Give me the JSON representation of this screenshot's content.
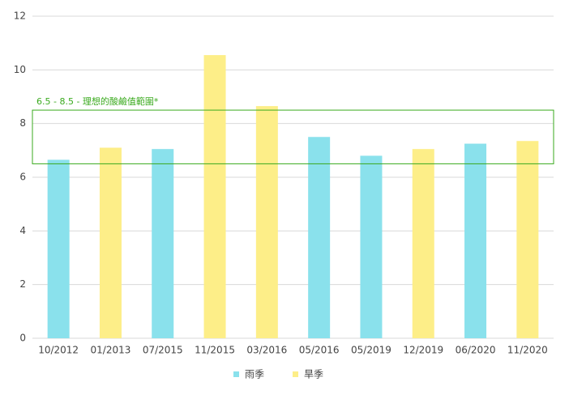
{
  "chart_data": {
    "type": "bar",
    "categories": [
      "10/2012",
      "01/2013",
      "07/2015",
      "11/2015",
      "03/2016",
      "05/2016",
      "05/2019",
      "12/2019",
      "06/2020",
      "11/2020"
    ],
    "series": [
      {
        "name": "雨季",
        "color": "#8ae1ec",
        "values": [
          6.65,
          null,
          7.05,
          null,
          null,
          7.5,
          6.8,
          null,
          7.25,
          null
        ]
      },
      {
        "name": "旱季",
        "color": "#fdee88",
        "values": [
          null,
          7.1,
          null,
          10.55,
          8.65,
          null,
          null,
          7.05,
          null,
          7.35
        ]
      }
    ],
    "ylim": [
      0,
      12
    ],
    "yticks": [
      0,
      2,
      4,
      6,
      8,
      10,
      12
    ],
    "grid": true,
    "band": {
      "range": [
        6.5,
        8.5
      ],
      "label": "6.5 - 8.5 - 理想的酸鹼值範圍*",
      "color": "#3aaa1e"
    },
    "legend": "bottom"
  }
}
